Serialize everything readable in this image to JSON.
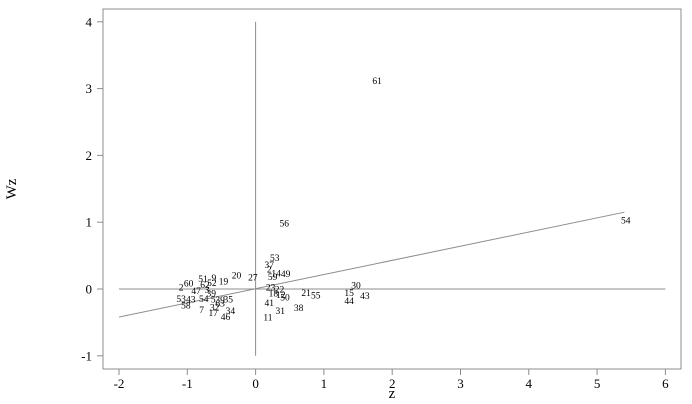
{
  "chart_data": {
    "type": "scatter",
    "title": "",
    "xlabel": "z",
    "ylabel": "Wz",
    "xlim": [
      -2.2,
      6.3
    ],
    "ylim": [
      -1.1,
      4.2
    ],
    "xticks": [
      "-2",
      "-1",
      "0",
      "1",
      "2",
      "3",
      "4",
      "5",
      "6"
    ],
    "xtick_values": [
      -2,
      -1,
      0,
      1,
      2,
      3,
      4,
      5,
      6
    ],
    "yticks": [
      "-1",
      "0",
      "1",
      "2",
      "3",
      "4"
    ],
    "ytick_values": [
      -1,
      0,
      1,
      2,
      3,
      4
    ],
    "grid": false,
    "legend": "none",
    "reference_lines": {
      "x": 0,
      "y": 0
    },
    "fit_line": {
      "x": [
        -2,
        5.4
      ],
      "y": [
        -0.42,
        1.15
      ]
    },
    "points": [
      {
        "label": "61",
        "x": 1.78,
        "y": 3.12
      },
      {
        "label": "56",
        "x": 0.42,
        "y": 0.99
      },
      {
        "label": "54",
        "x": 5.42,
        "y": 1.03
      },
      {
        "label": "53",
        "x": 0.28,
        "y": 0.47
      },
      {
        "label": "37",
        "x": 0.2,
        "y": 0.37
      },
      {
        "label": "2",
        "x": 0.2,
        "y": 0.3
      },
      {
        "label": "14",
        "x": 0.3,
        "y": 0.24
      },
      {
        "label": "49",
        "x": 0.44,
        "y": 0.23
      },
      {
        "label": "59",
        "x": 0.25,
        "y": 0.19
      },
      {
        "label": "20",
        "x": -0.28,
        "y": 0.21
      },
      {
        "label": "27",
        "x": -0.04,
        "y": 0.18
      },
      {
        "label": "51",
        "x": -0.77,
        "y": 0.16
      },
      {
        "label": "9",
        "x": -0.61,
        "y": 0.17
      },
      {
        "label": "19",
        "x": -0.47,
        "y": 0.12
      },
      {
        "label": "52",
        "x": -0.64,
        "y": 0.1
      },
      {
        "label": "62",
        "x": -0.74,
        "y": 0.07
      },
      {
        "label": "60",
        "x": -0.98,
        "y": 0.09
      },
      {
        "label": "2",
        "x": -1.09,
        "y": 0.03
      },
      {
        "label": "47",
        "x": -0.87,
        "y": -0.02
      },
      {
        "label": "3",
        "x": -0.71,
        "y": -0.01
      },
      {
        "label": "39",
        "x": -0.65,
        "y": -0.06
      },
      {
        "label": "23",
        "x": 0.22,
        "y": 0.03
      },
      {
        "label": "22",
        "x": 0.35,
        "y": 0.0
      },
      {
        "label": "18",
        "x": 0.26,
        "y": -0.06
      },
      {
        "label": "12",
        "x": 0.37,
        "y": -0.08
      },
      {
        "label": "50",
        "x": 0.43,
        "y": -0.12
      },
      {
        "label": "21",
        "x": 0.74,
        "y": -0.05
      },
      {
        "label": "55",
        "x": 0.88,
        "y": -0.09
      },
      {
        "label": "30",
        "x": 1.47,
        "y": 0.06
      },
      {
        "label": "15",
        "x": 1.37,
        "y": -0.05
      },
      {
        "label": "43",
        "x": 1.6,
        "y": -0.1
      },
      {
        "label": "44",
        "x": 1.37,
        "y": -0.17
      },
      {
        "label": "41",
        "x": 0.2,
        "y": -0.2
      },
      {
        "label": "38",
        "x": 0.63,
        "y": -0.28
      },
      {
        "label": "31",
        "x": 0.36,
        "y": -0.32
      },
      {
        "label": "11",
        "x": 0.18,
        "y": -0.42
      },
      {
        "label": "53",
        "x": -1.09,
        "y": -0.14
      },
      {
        "label": "58",
        "x": -1.02,
        "y": -0.24
      },
      {
        "label": "43",
        "x": -0.95,
        "y": -0.15
      },
      {
        "label": "54",
        "x": -0.76,
        "y": -0.14
      },
      {
        "label": "5",
        "x": -0.62,
        "y": -0.15
      },
      {
        "label": "39",
        "x": -0.52,
        "y": -0.16
      },
      {
        "label": "35",
        "x": -0.4,
        "y": -0.15
      },
      {
        "label": "63",
        "x": -0.52,
        "y": -0.21
      },
      {
        "label": "32",
        "x": -0.6,
        "y": -0.27
      },
      {
        "label": "7",
        "x": -0.79,
        "y": -0.31
      },
      {
        "label": "17",
        "x": -0.62,
        "y": -0.35
      },
      {
        "label": "34",
        "x": -0.37,
        "y": -0.32
      },
      {
        "label": "46",
        "x": -0.44,
        "y": -0.41
      }
    ]
  }
}
